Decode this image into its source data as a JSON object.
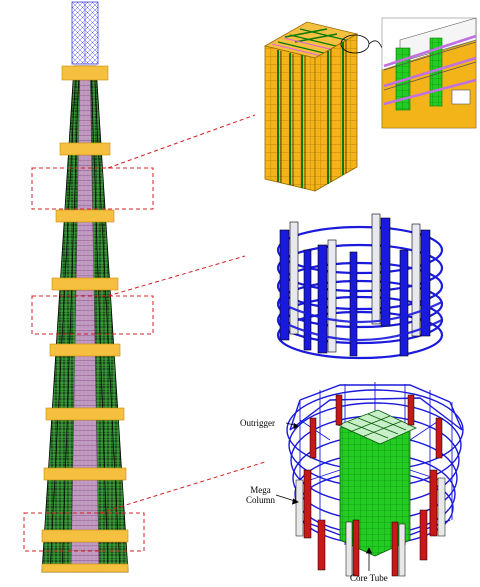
{
  "labels": {
    "outrigger": "Outrigger",
    "mega_column_line1": "Mega",
    "mega_column_line2": "Column",
    "core_tube": "Core Tube"
  },
  "colors": {
    "steel_blue": "#1a1adc",
    "core_green": "#22cc22",
    "mega_red": "#c81818",
    "facade_gold": "#f2b418",
    "outrigger_orange": "#f5c040",
    "leader_red": "#d42020",
    "spire_blue": "#6b6bff",
    "tower_black": "#111111"
  }
}
